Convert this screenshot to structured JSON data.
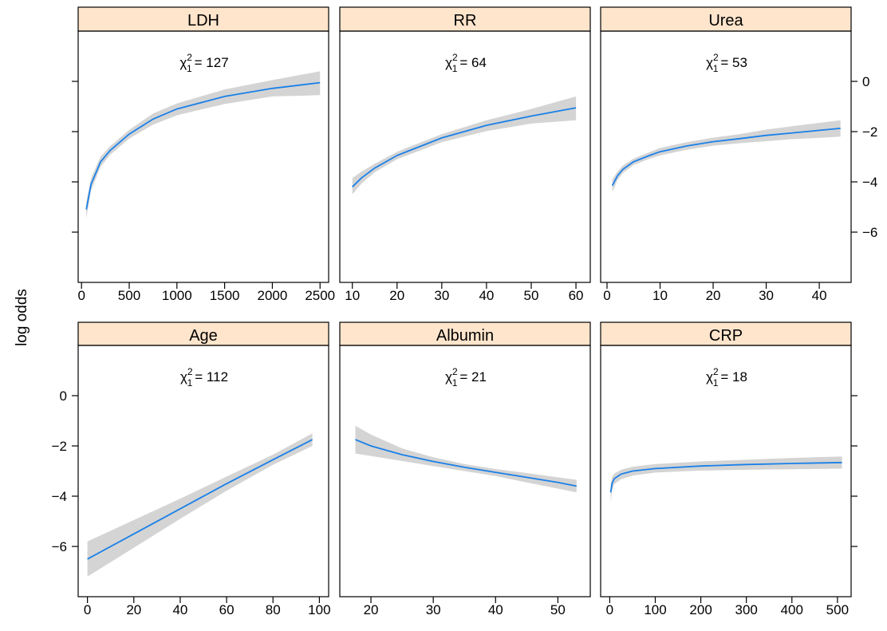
{
  "chart_data": {
    "type": "line",
    "ylabel": "log odds",
    "ylim": [
      -8,
      2
    ],
    "yticks": [
      -6,
      -4,
      -2,
      0
    ],
    "line_color": "#1a80e8",
    "band_color": "#d4d4d4",
    "strip_color": "#ffe5cc",
    "panels": [
      {
        "name": "LDH",
        "stat_label": "χ",
        "stat_sub": "1",
        "stat_sup": "2",
        "stat_value": "= 127",
        "xlim": [
          -35,
          2590
        ],
        "xticks": [
          0,
          500,
          1000,
          1500,
          2000,
          2500
        ],
        "x": [
          50,
          100,
          200,
          300,
          500,
          750,
          1000,
          1500,
          2000,
          2500
        ],
        "y": [
          -5.1,
          -4.1,
          -3.2,
          -2.75,
          -2.1,
          -1.5,
          -1.1,
          -0.6,
          -0.28,
          -0.05
        ],
        "lower": [
          -5.45,
          -4.35,
          -3.4,
          -2.92,
          -2.28,
          -1.72,
          -1.35,
          -0.9,
          -0.6,
          -0.55
        ],
        "upper": [
          -4.8,
          -3.85,
          -3.0,
          -2.58,
          -1.93,
          -1.28,
          -0.88,
          -0.32,
          0.05,
          0.4
        ]
      },
      {
        "name": "RR",
        "stat_label": "χ",
        "stat_sub": "1",
        "stat_sup": "2",
        "stat_value": "= 64",
        "xlim": [
          7.2,
          63.2
        ],
        "xticks": [
          10,
          20,
          30,
          40,
          50,
          60
        ],
        "x": [
          10,
          12,
          15,
          20,
          30,
          40,
          50,
          60
        ],
        "y": [
          -4.2,
          -3.85,
          -3.45,
          -2.95,
          -2.25,
          -1.75,
          -1.38,
          -1.05
        ],
        "lower": [
          -4.5,
          -4.08,
          -3.62,
          -3.1,
          -2.42,
          -1.98,
          -1.68,
          -1.55
        ],
        "upper": [
          -3.85,
          -3.6,
          -3.28,
          -2.8,
          -2.1,
          -1.55,
          -1.1,
          -0.6
        ]
      },
      {
        "name": "Urea",
        "stat_label": "χ",
        "stat_sub": "1",
        "stat_sup": "2",
        "stat_value": "= 53",
        "xlim": [
          -1.2,
          46
        ],
        "xticks": [
          0,
          10,
          20,
          30,
          40
        ],
        "x": [
          1,
          2,
          3,
          5,
          8,
          10,
          15,
          20,
          25,
          30,
          35,
          40,
          44
        ],
        "y": [
          -4.15,
          -3.75,
          -3.5,
          -3.2,
          -2.95,
          -2.8,
          -2.57,
          -2.4,
          -2.28,
          -2.15,
          -2.05,
          -1.95,
          -1.87
        ],
        "lower": [
          -4.4,
          -3.92,
          -3.65,
          -3.33,
          -3.08,
          -2.95,
          -2.72,
          -2.56,
          -2.46,
          -2.38,
          -2.3,
          -2.25,
          -2.2
        ],
        "upper": [
          -3.9,
          -3.58,
          -3.35,
          -3.07,
          -2.82,
          -2.65,
          -2.42,
          -2.24,
          -2.1,
          -1.92,
          -1.78,
          -1.65,
          -1.55
        ]
      },
      {
        "name": "Age",
        "stat_label": "χ",
        "stat_sub": "1",
        "stat_sup": "2",
        "stat_value": "= 112",
        "xlim": [
          -4,
          104
        ],
        "xticks": [
          0,
          20,
          40,
          60,
          80,
          100
        ],
        "x": [
          0,
          20,
          40,
          60,
          80,
          97
        ],
        "y": [
          -6.5,
          -5.5,
          -4.5,
          -3.5,
          -2.55,
          -1.75
        ],
        "lower": [
          -7.2,
          -6.05,
          -4.9,
          -3.78,
          -2.75,
          -2.0
        ],
        "upper": [
          -5.8,
          -4.95,
          -4.1,
          -3.22,
          -2.35,
          -1.5
        ]
      },
      {
        "name": "Albumin",
        "stat_label": "χ",
        "stat_sub": "1",
        "stat_sup": "2",
        "stat_value": "= 21",
        "xlim": [
          15,
          55.2
        ],
        "xticks": [
          20,
          30,
          40,
          50
        ],
        "x": [
          17.5,
          20,
          25,
          30,
          35,
          40,
          45,
          50,
          53
        ],
        "y": [
          -1.75,
          -2.0,
          -2.35,
          -2.62,
          -2.85,
          -3.05,
          -3.25,
          -3.45,
          -3.6
        ],
        "lower": [
          -2.3,
          -2.4,
          -2.6,
          -2.8,
          -3.0,
          -3.2,
          -3.45,
          -3.7,
          -3.85
        ],
        "upper": [
          -1.2,
          -1.55,
          -2.1,
          -2.45,
          -2.72,
          -2.92,
          -3.08,
          -3.25,
          -3.35
        ]
      },
      {
        "name": "CRP",
        "stat_label": "χ",
        "stat_sub": "1",
        "stat_sup": "2",
        "stat_value": "= 18",
        "xlim": [
          -20,
          530
        ],
        "xticks": [
          0,
          100,
          200,
          300,
          400,
          500
        ],
        "x": [
          2,
          5,
          10,
          25,
          50,
          100,
          200,
          300,
          400,
          510
        ],
        "y": [
          -3.85,
          -3.5,
          -3.3,
          -3.12,
          -3.0,
          -2.9,
          -2.8,
          -2.74,
          -2.7,
          -2.66
        ],
        "lower": [
          -4.25,
          -3.78,
          -3.52,
          -3.32,
          -3.18,
          -3.06,
          -2.98,
          -2.95,
          -2.93,
          -2.9
        ],
        "upper": [
          -3.5,
          -3.25,
          -3.1,
          -2.95,
          -2.83,
          -2.72,
          -2.62,
          -2.55,
          -2.48,
          -2.42
        ]
      }
    ]
  }
}
